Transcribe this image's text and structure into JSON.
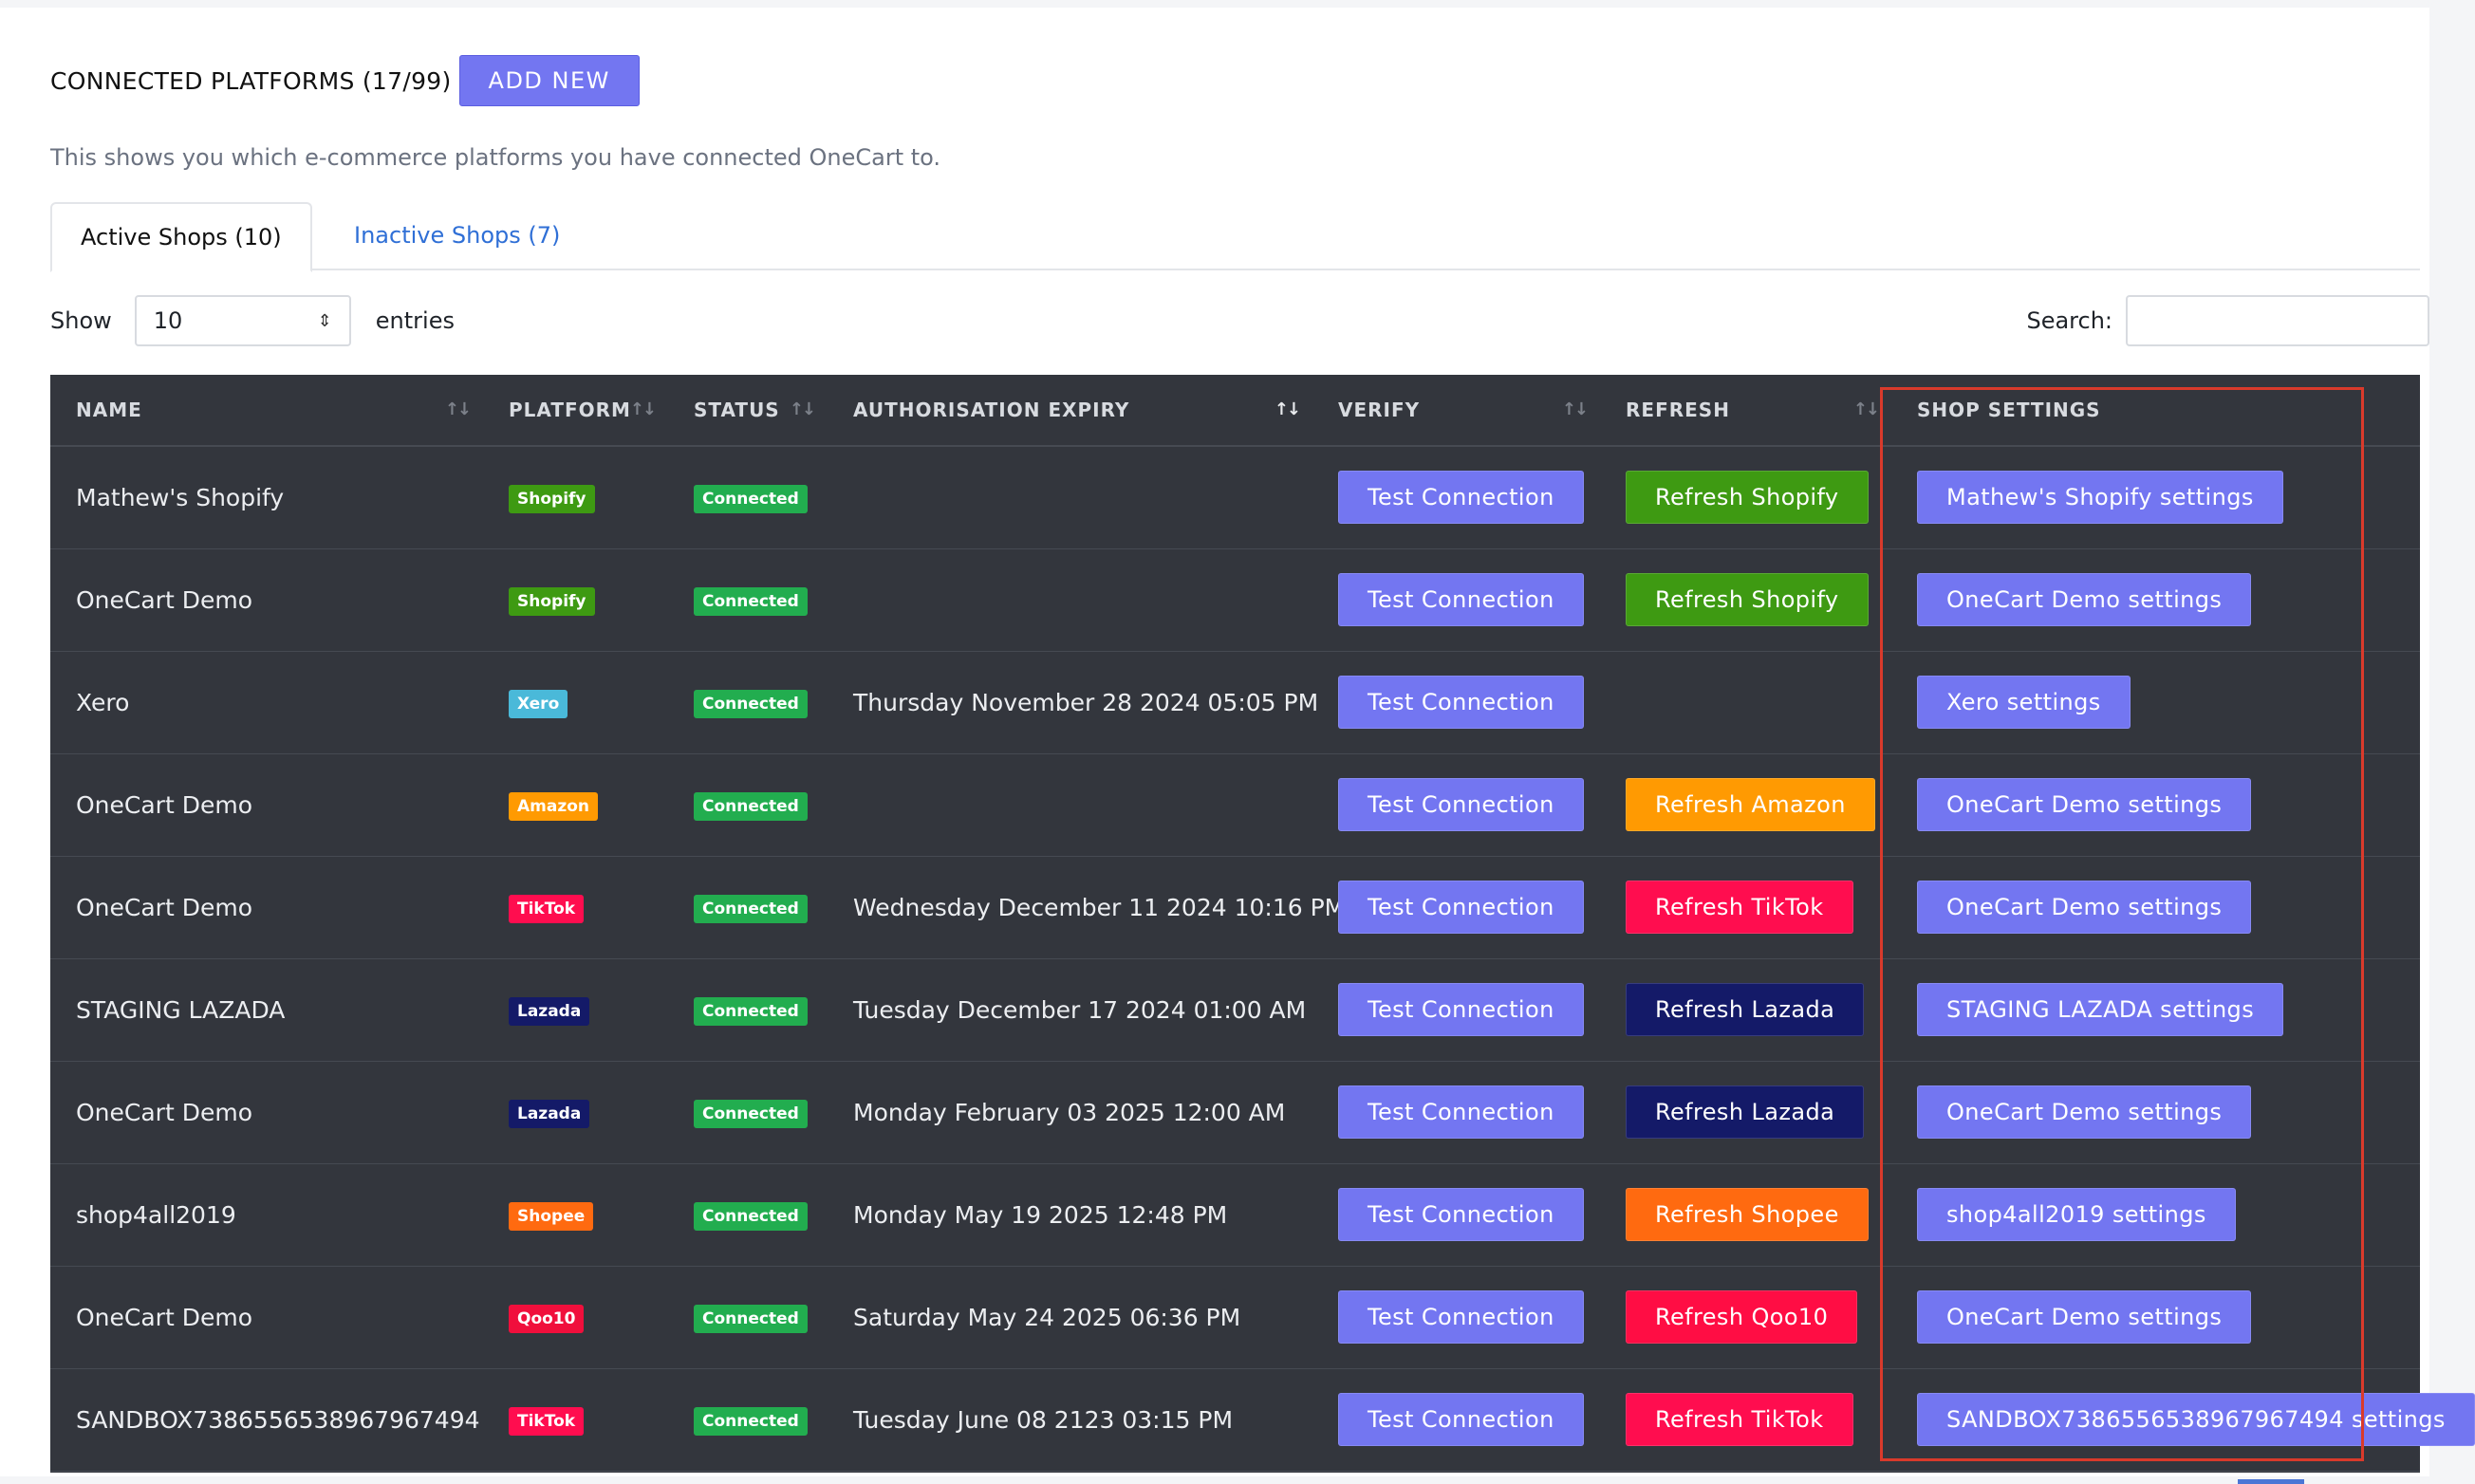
{
  "header": {
    "title": "CONNECTED PLATFORMS (17/99)",
    "add_label": "ADD NEW"
  },
  "subtitle": "This shows you which e-commerce platforms you have connected OneCart to.",
  "tabs": [
    {
      "label": "Active Shops (10)"
    },
    {
      "label": "Inactive Shops (7)"
    }
  ],
  "controls": {
    "show_label": "Show",
    "page_size": "10",
    "entries_label": "entries",
    "search_label": "Search:",
    "search_value": ""
  },
  "table": {
    "columns": [
      "NAME",
      "PLATFORM",
      "STATUS",
      "AUTHORISATION EXPIRY",
      "VERIFY",
      "REFRESH",
      "SHOP SETTINGS"
    ],
    "rows": [
      {
        "name": "Mathew's Shopify",
        "platform": "Shopify",
        "platform_color": "#3e9a12",
        "status": "Connected",
        "expiry": "",
        "verify": "Test Connection",
        "refresh": "Refresh Shopify",
        "refresh_color": "#3e9a12",
        "settings": "Mathew's Shopify settings"
      },
      {
        "name": "OneCart Demo",
        "platform": "Shopify",
        "platform_color": "#3e9a12",
        "status": "Connected",
        "expiry": "",
        "verify": "Test Connection",
        "refresh": "Refresh Shopify",
        "refresh_color": "#3e9a12",
        "settings": "OneCart Demo settings"
      },
      {
        "name": "Xero",
        "platform": "Xero",
        "platform_color": "#4ab9d9",
        "status": "Connected",
        "expiry": "Thursday November 28 2024 05:05 PM",
        "verify": "Test Connection",
        "refresh": "",
        "refresh_color": "",
        "settings": "Xero settings"
      },
      {
        "name": "OneCart Demo",
        "platform": "Amazon",
        "platform_color": "#ff9a02",
        "status": "Connected",
        "expiry": "",
        "verify": "Test Connection",
        "refresh": "Refresh Amazon",
        "refresh_color": "#ff9a02",
        "settings": "OneCart Demo settings"
      },
      {
        "name": "OneCart Demo",
        "platform": "TikTok",
        "platform_color": "#ff0d4f",
        "status": "Connected",
        "expiry": "Wednesday December 11 2024 10:16 PM",
        "verify": "Test Connection",
        "refresh": "Refresh TikTok",
        "refresh_color": "#ff0d4f",
        "settings": "OneCart Demo settings"
      },
      {
        "name": "STAGING LAZADA",
        "platform": "Lazada",
        "platform_color": "#141a68",
        "status": "Connected",
        "expiry": "Tuesday December 17 2024 01:00 AM",
        "verify": "Test Connection",
        "refresh": "Refresh Lazada",
        "refresh_color": "#141a68",
        "settings": "STAGING LAZADA settings"
      },
      {
        "name": "OneCart Demo",
        "platform": "Lazada",
        "platform_color": "#141a68",
        "status": "Connected",
        "expiry": "Monday February 03 2025 12:00 AM",
        "verify": "Test Connection",
        "refresh": "Refresh Lazada",
        "refresh_color": "#141a68",
        "settings": "OneCart Demo settings"
      },
      {
        "name": "shop4all2019",
        "platform": "Shopee",
        "platform_color": "#ff6a10",
        "status": "Connected",
        "expiry": "Monday May 19 2025 12:48 PM",
        "verify": "Test Connection",
        "refresh": "Refresh Shopee",
        "refresh_color": "#ff6a10",
        "settings": "shop4all2019 settings"
      },
      {
        "name": "OneCart Demo",
        "platform": "Qoo10",
        "platform_color": "#f00f3c",
        "status": "Connected",
        "expiry": "Saturday May 24 2025 06:36 PM",
        "verify": "Test Connection",
        "refresh": "Refresh Qoo10",
        "refresh_color": "#ff0d44",
        "settings": "OneCart Demo settings"
      },
      {
        "name": "SANDBOX7386556538967967494",
        "platform": "TikTok",
        "platform_color": "#ff0d4f",
        "status": "Connected",
        "expiry": "Tuesday June 08 2123 03:15 PM",
        "verify": "Test Connection",
        "refresh": "Refresh TikTok",
        "refresh_color": "#ff0d4f",
        "settings": "SANDBOX7386556538967967494 settings"
      }
    ]
  },
  "colors": {
    "accent": "#7376f1",
    "status_connected": "#22ad4f",
    "table_bg": "#33363d",
    "highlight": "#d93a2b"
  },
  "icons": {
    "sort": "sort-arrows-icon",
    "select": "select-updown-icon"
  }
}
